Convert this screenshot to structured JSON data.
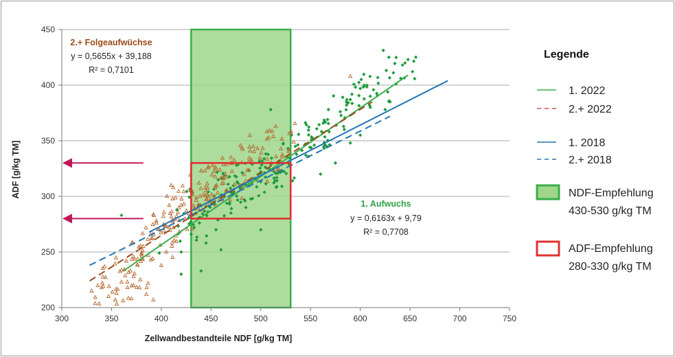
{
  "chart_data": {
    "type": "scatter",
    "xlabel": "Zellwandbestandteile NDF [g/kg TM]",
    "ylabel": "ADF [g/kg TM]",
    "xlim": [
      300,
      750
    ],
    "ylim": [
      200,
      450
    ],
    "xticks": [
      300,
      350,
      400,
      450,
      500,
      550,
      600,
      650,
      700,
      750
    ],
    "yticks": [
      200,
      250,
      300,
      350,
      400,
      450
    ],
    "grid": "horizontal",
    "legend_placement": "right",
    "series": [
      {
        "name": "1. 2022",
        "kind": "line",
        "style": "solid",
        "color": "#3aae4a",
        "x": [
          362,
          648
        ],
        "y": [
          233,
          409
        ]
      },
      {
        "name": "2.+ 2022",
        "kind": "line",
        "style": "dashed",
        "color": "#9c4a1a",
        "x": [
          328,
          612
        ],
        "y": [
          224,
          385
        ]
      },
      {
        "name": "1. 2018",
        "kind": "line",
        "style": "solid",
        "color": "#2074b4",
        "x": [
          388,
          688
        ],
        "y": [
          268,
          404
        ]
      },
      {
        "name": "2.+ 2018",
        "kind": "line",
        "style": "dashed",
        "color": "#2074b4",
        "x": [
          328,
          630
        ],
        "y": [
          238,
          372
        ]
      }
    ],
    "regions": [
      {
        "name": "NDF-Empfehlung",
        "x": [
          430,
          530
        ],
        "color": "#9fd68c",
        "border": "#3aae4a"
      },
      {
        "name": "ADF-Empfehlung",
        "x": [
          430,
          530
        ],
        "y": [
          280,
          330
        ],
        "border": "#e03030"
      }
    ],
    "arrows_y": [
      330,
      280
    ],
    "annotations": {
      "folge": {
        "head": "2.+ Folgeaufwüchse",
        "eq": "y = 0,5655x + 39,188",
        "r2": "R² = 0,7101"
      },
      "aufwuchs": {
        "head": "1. Aufwuchs",
        "eq": "y = 0,6163x + 9,79",
        "r2": "R² = 0,7708"
      }
    },
    "legend": {
      "title": "Legende",
      "items": [
        {
          "label": "1. 2022"
        },
        {
          "label": "2.+ 2022"
        },
        {
          "label": "1. 2018"
        },
        {
          "label": "2.+ 2018"
        },
        {
          "label": "NDF-Empfehlung",
          "label2": "430-530 g/kg TM"
        },
        {
          "label": "ADF-Empfehlung",
          "label2": "280-330 g/kg TM"
        }
      ]
    },
    "scatter_groups": [
      {
        "name": "1. Aufwuchs",
        "marker": "diamond",
        "color": "#1e9a3c",
        "centers": [
          [
            430,
            275
          ],
          [
            440,
            290
          ],
          [
            455,
            295
          ],
          [
            470,
            305
          ],
          [
            480,
            310
          ],
          [
            490,
            315
          ],
          [
            500,
            315
          ],
          [
            510,
            320
          ],
          [
            520,
            330
          ],
          [
            535,
            340
          ],
          [
            550,
            350
          ],
          [
            565,
            360
          ],
          [
            580,
            375
          ],
          [
            600,
            390
          ],
          [
            620,
            400
          ],
          [
            640,
            415
          ]
        ],
        "extra": [
          [
            360,
            283
          ],
          [
            398,
            249
          ],
          [
            420,
            230
          ],
          [
            420,
            250
          ],
          [
            440,
            233
          ],
          [
            460,
            252
          ],
          [
            455,
            270
          ],
          [
            500,
            270
          ],
          [
            510,
            378
          ],
          [
            485,
            290
          ],
          [
            470,
            285
          ],
          [
            445,
            258
          ],
          [
            560,
            320
          ],
          [
            575,
            330
          ],
          [
            590,
            348
          ],
          [
            600,
            355
          ],
          [
            610,
            380
          ],
          [
            625,
            378
          ],
          [
            630,
            385
          ],
          [
            645,
            420
          ],
          [
            648,
            423
          ],
          [
            600,
            397
          ],
          [
            590,
            387
          ],
          [
            568,
            378
          ],
          [
            610,
            390
          ]
        ]
      },
      {
        "name": "2.+ Folgeaufwüchse",
        "marker": "triangle",
        "color": "#b5652c",
        "centers": [
          [
            350,
            220
          ],
          [
            360,
            225
          ],
          [
            370,
            235
          ],
          [
            385,
            255
          ],
          [
            395,
            262
          ],
          [
            405,
            272
          ],
          [
            415,
            285
          ],
          [
            425,
            290
          ],
          [
            435,
            300
          ],
          [
            445,
            308
          ],
          [
            455,
            310
          ],
          [
            465,
            315
          ],
          [
            475,
            320
          ],
          [
            490,
            330
          ],
          [
            505,
            340
          ],
          [
            520,
            350
          ]
        ],
        "extra": [
          [
            330,
            215
          ],
          [
            340,
            218
          ],
          [
            347,
            210
          ],
          [
            355,
            213
          ],
          [
            360,
            223
          ],
          [
            370,
            208
          ],
          [
            372,
            220
          ],
          [
            378,
            218
          ],
          [
            385,
            212
          ],
          [
            392,
            207
          ],
          [
            395,
            278
          ],
          [
            400,
            238
          ],
          [
            405,
            250
          ],
          [
            410,
            310
          ],
          [
            412,
            308
          ],
          [
            420,
            292
          ],
          [
            430,
            305
          ],
          [
            440,
            323
          ],
          [
            455,
            325
          ],
          [
            470,
            335
          ],
          [
            590,
            408
          ],
          [
            380,
            248
          ],
          [
            390,
            262
          ],
          [
            402,
            282
          ],
          [
            408,
            292
          ]
        ]
      }
    ]
  }
}
